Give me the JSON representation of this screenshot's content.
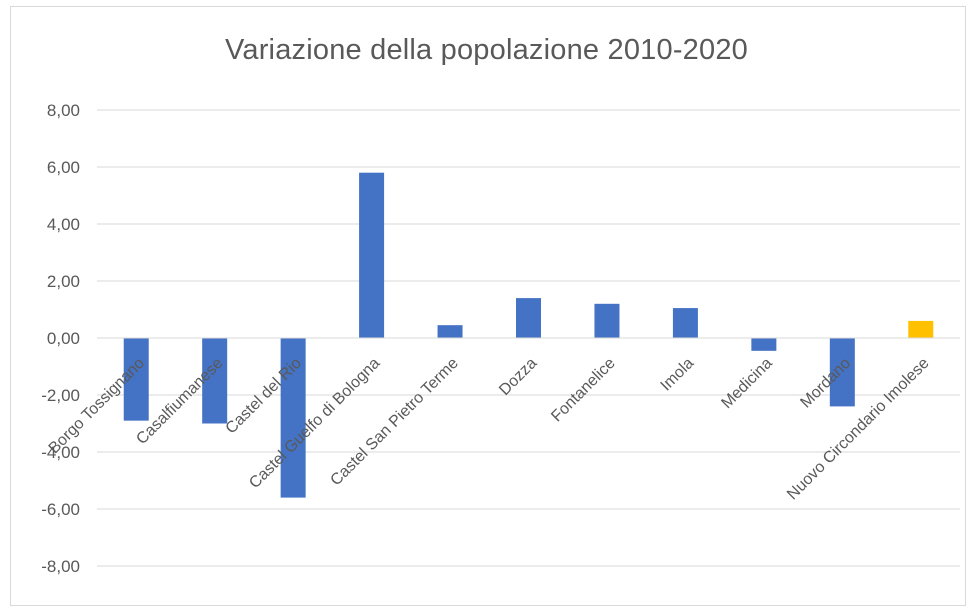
{
  "chart_data": {
    "type": "bar",
    "title": "Variazione della popolazione 2010-2020",
    "xlabel": "",
    "ylabel": "",
    "ylim": [
      -8,
      8
    ],
    "yticks": [
      8,
      6,
      4,
      2,
      0,
      -2,
      -4,
      -6,
      -8
    ],
    "ytick_labels": [
      "8,00",
      "6,00",
      "4,00",
      "2,00",
      "0,00",
      "-2,00",
      "-4,00",
      "-6,00",
      "-8,00"
    ],
    "grid": true,
    "legend": "none",
    "categories": [
      "Borgo Tossignano",
      "Casalfiumanese",
      "Castel del Rio",
      "Castel Guelfo di Bologna",
      "Castel San Pietro Terme",
      "Dozza",
      "Fontanelice",
      "Imola",
      "Medicina",
      "Mordano",
      "Nuovo Circondario Imolese"
    ],
    "values": [
      -2.9,
      -3.0,
      -5.6,
      5.8,
      0.45,
      1.4,
      1.2,
      1.05,
      -0.45,
      -2.4,
      0.6
    ],
    "colors": [
      "#4472c4",
      "#4472c4",
      "#4472c4",
      "#4472c4",
      "#4472c4",
      "#4472c4",
      "#4472c4",
      "#4472c4",
      "#4472c4",
      "#4472c4",
      "#ffc000"
    ],
    "gridline_color": "#d9d9d9",
    "text_color": "#595959"
  }
}
